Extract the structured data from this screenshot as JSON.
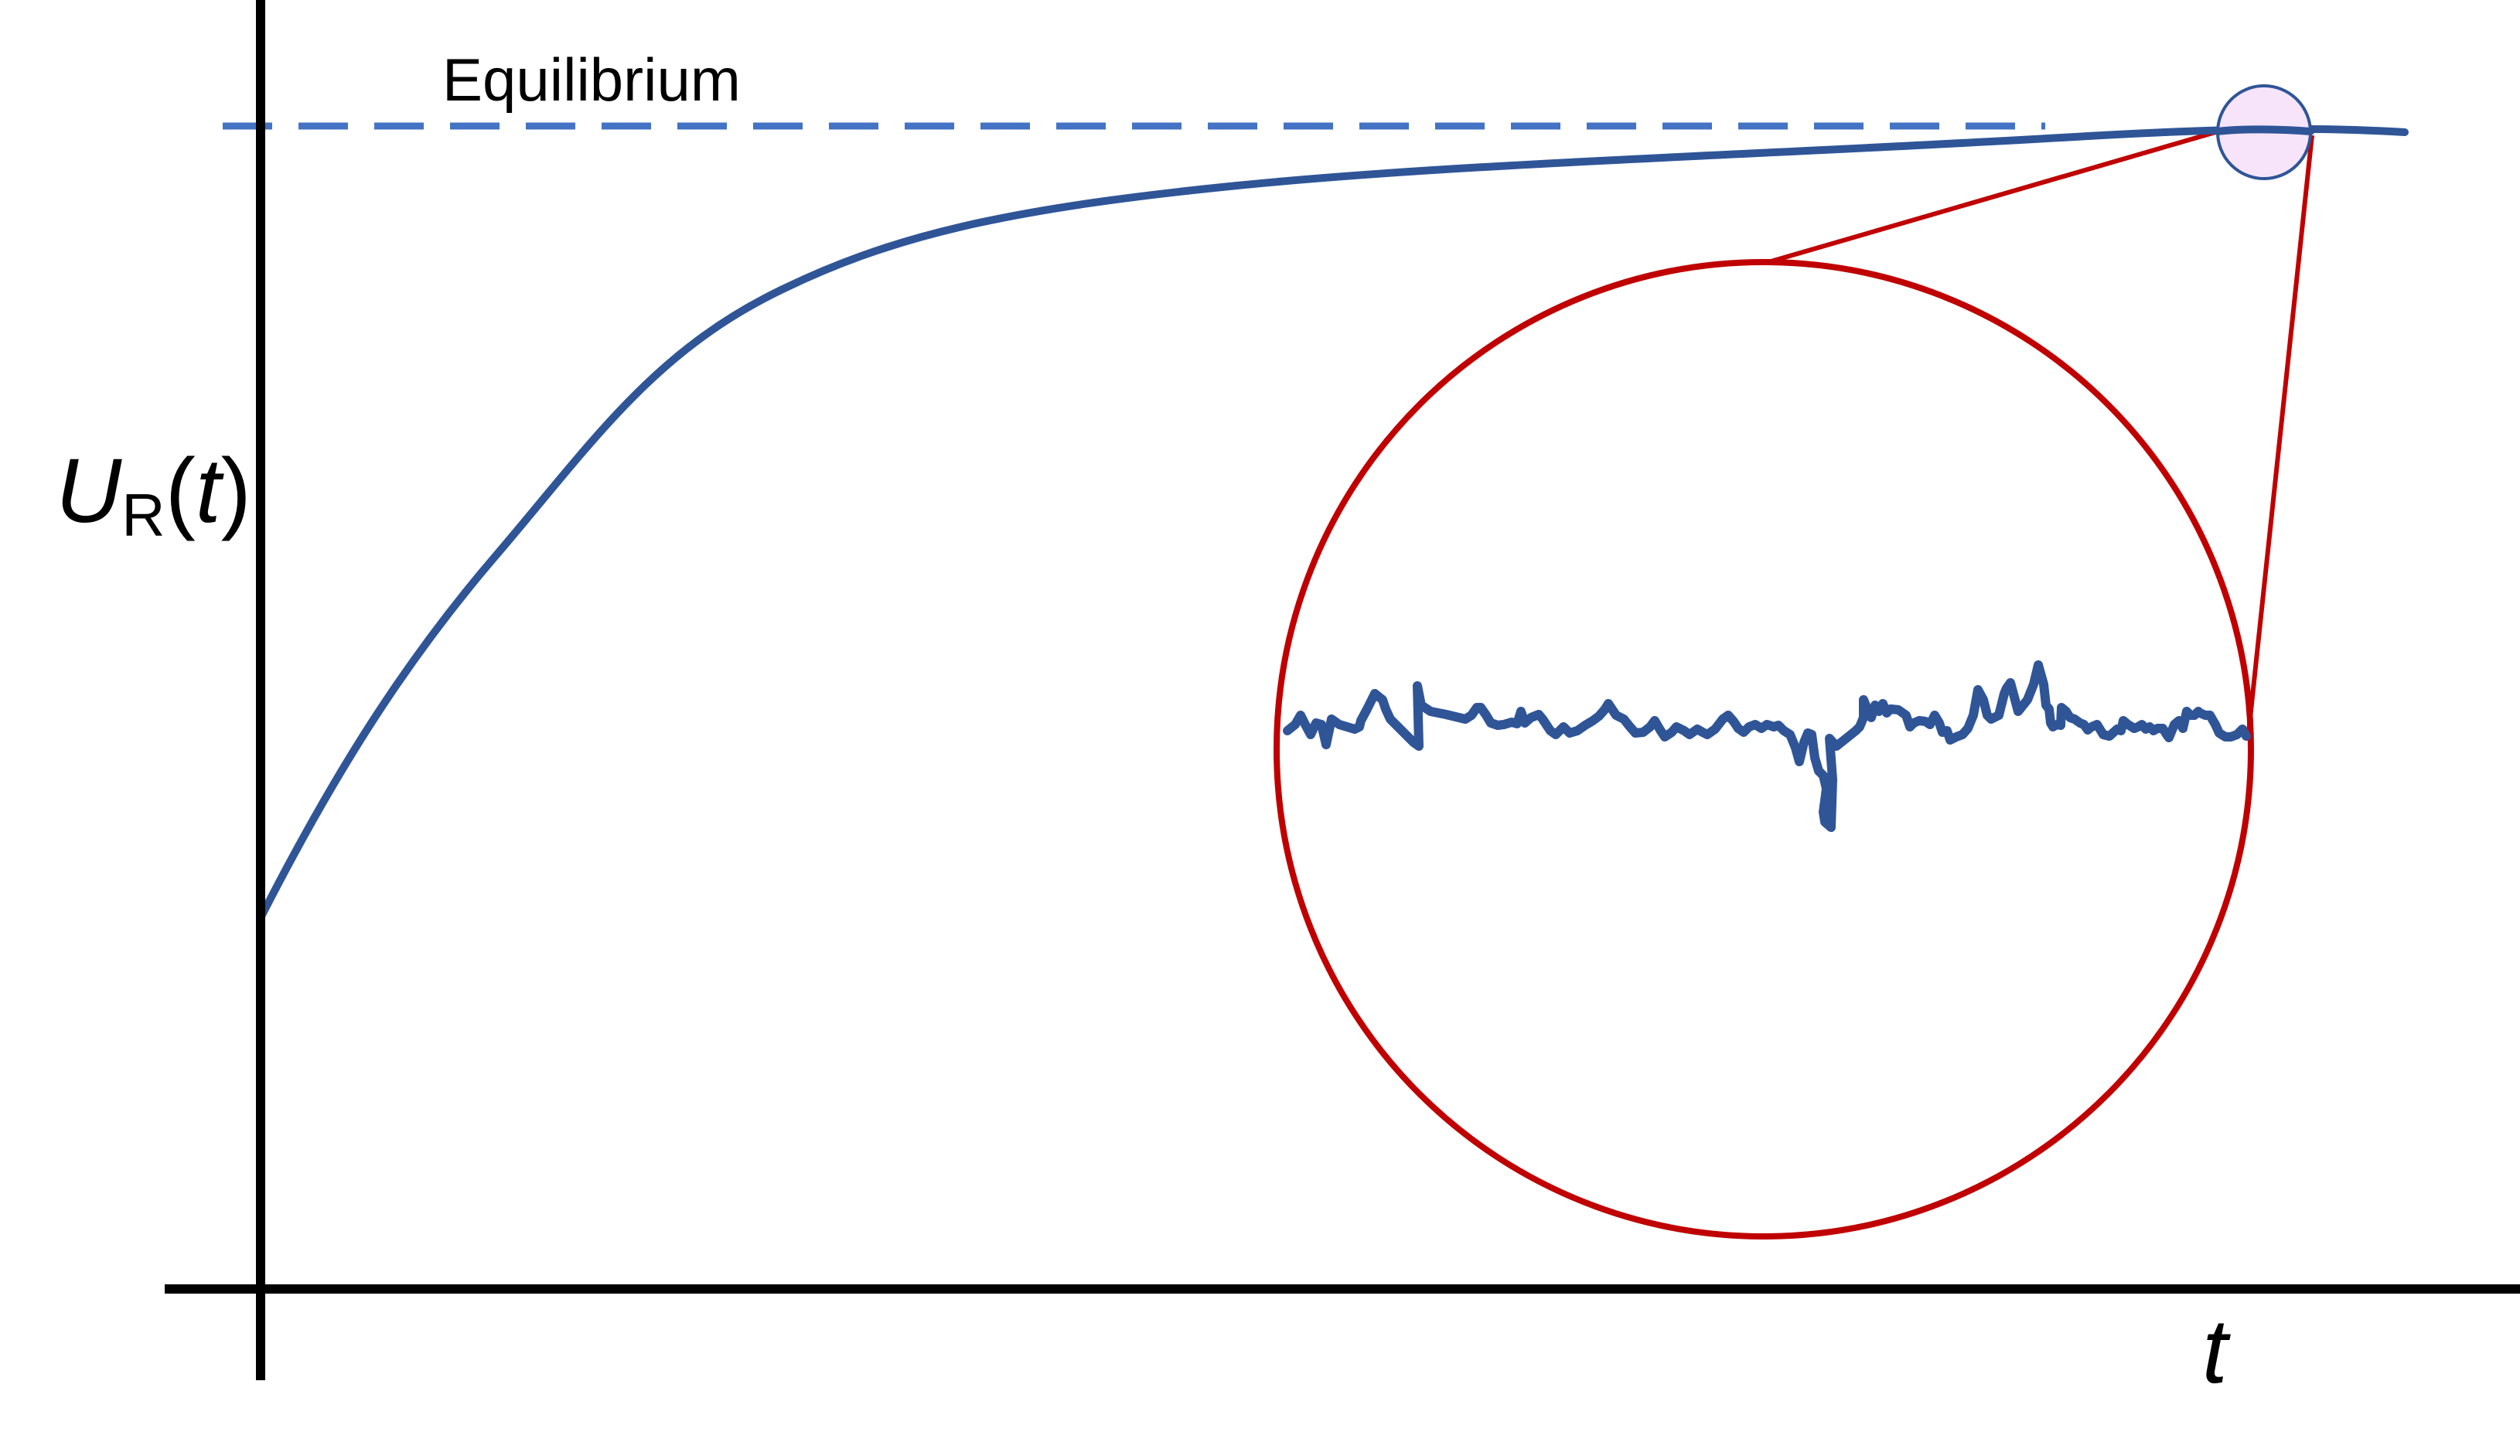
{
  "figure": {
    "equilibrium_label": "Equilibrium",
    "y_axis_label": {
      "symbol": "U",
      "subscript": "R",
      "open_paren": "(",
      "variable": "t",
      "close_paren": ")"
    },
    "x_axis_label": "t"
  },
  "colors": {
    "curve": "#2f5597",
    "equilibrium_line": "#4472c4",
    "zoom_circle": "#c00000",
    "zoom_marker_fill": "#f7e4fb",
    "axes": "#000000"
  }
}
